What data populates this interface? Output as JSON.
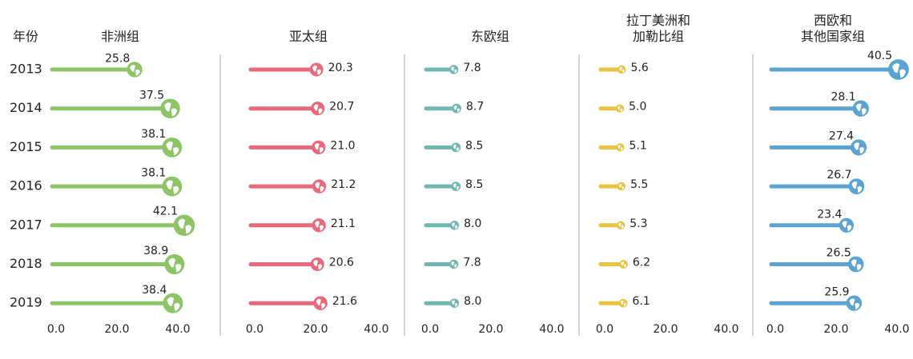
{
  "chart_data": {
    "type": "bar",
    "ylabel": "年份",
    "categories": [
      "2013",
      "2014",
      "2015",
      "2016",
      "2017",
      "2018",
      "2019"
    ],
    "series": [
      {
        "name": "非洲组",
        "color": "#8cc466",
        "values": [
          25.8,
          37.5,
          38.1,
          38.1,
          42.1,
          38.9,
          38.4
        ],
        "value_labels": [
          "25.8",
          "37.5",
          "38.1",
          "38.1",
          "42.1",
          "38.9",
          "38.4"
        ]
      },
      {
        "name": "亚太组",
        "color": "#e8697a",
        "values": [
          20.3,
          20.7,
          21.0,
          21.2,
          21.1,
          20.6,
          21.6
        ],
        "value_labels": [
          "20.3",
          "20.7",
          "21.0",
          "21.2",
          "21.1",
          "20.6",
          "21.6"
        ]
      },
      {
        "name": "东欧组",
        "color": "#70b6b1",
        "values": [
          7.8,
          8.7,
          8.5,
          8.5,
          8.0,
          7.8,
          8.0
        ],
        "value_labels": [
          "7.8",
          "8.7",
          "8.5",
          "8.5",
          "8.0",
          "7.8",
          "8.0"
        ]
      },
      {
        "name": "拉丁美洲和\n加勒比组",
        "color": "#e8c240",
        "values": [
          5.6,
          5.0,
          5.1,
          5.5,
          5.3,
          6.2,
          6.1
        ],
        "value_labels": [
          "5.6",
          "5.0",
          "5.1",
          "5.5",
          "5.3",
          "6.2",
          "6.1"
        ]
      },
      {
        "name": "西欧和\n其他国家组",
        "color": "#5ba3d0",
        "values": [
          40.5,
          28.1,
          27.4,
          26.7,
          23.4,
          26.5,
          25.9
        ],
        "value_labels": [
          "40.5",
          "28.1",
          "27.4",
          "26.7",
          "23.4",
          "26.5",
          "25.9"
        ]
      }
    ],
    "xlim": [
      0,
      40
    ],
    "xticks": [
      {
        "value": 0,
        "label": "0.0"
      },
      {
        "value": 20,
        "label": "20.0"
      },
      {
        "value": 40,
        "label": "40.0"
      }
    ]
  }
}
